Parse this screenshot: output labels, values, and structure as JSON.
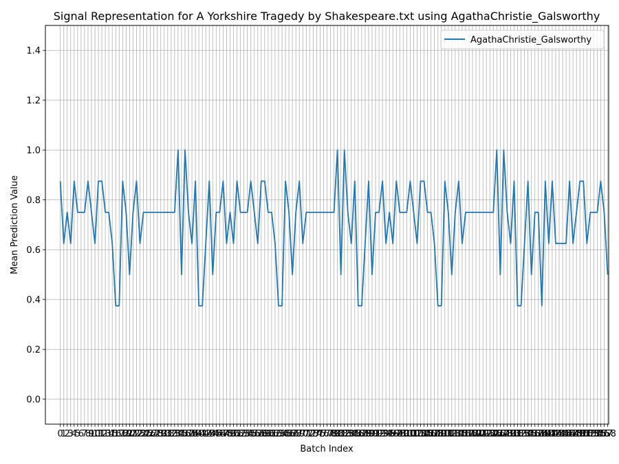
{
  "chart_data": {
    "type": "line",
    "title": "Signal Representation for A Yorkshire Tragedy by Shakespeare.txt using AgathaChristie_Galsworthy",
    "xlabel": "Batch Index",
    "ylabel": "Mean Prediction Value",
    "xlim": [
      -4.3,
      158.3
    ],
    "ylim": [
      -0.1,
      1.5
    ],
    "yticks": [
      0.0,
      0.2,
      0.4,
      0.6,
      0.8,
      1.0,
      1.2,
      1.4
    ],
    "ytick_labels": [
      "0.0",
      "0.2",
      "0.4",
      "0.6",
      "0.8",
      "1.0",
      "1.2",
      "1.4"
    ],
    "grid": true,
    "legend_position": "top-right",
    "colors": {
      "series": "#1f77b4",
      "grid": "#b0b0b0"
    },
    "series": [
      {
        "name": "AgathaChristie_Galsworthy",
        "values": [
          0.875,
          0.625,
          0.75,
          0.625,
          0.875,
          0.75,
          0.75,
          0.75,
          0.875,
          0.75,
          0.625,
          0.875,
          0.875,
          0.75,
          0.75,
          0.625,
          0.375,
          0.375,
          0.875,
          0.75,
          0.5,
          0.75,
          0.875,
          0.625,
          0.75,
          0.75,
          0.75,
          0.75,
          0.75,
          0.75,
          0.75,
          0.75,
          0.75,
          0.75,
          1.0,
          0.5,
          1.0,
          0.75,
          0.625,
          0.875,
          0.375,
          0.375,
          0.625,
          0.875,
          0.5,
          0.75,
          0.75,
          0.875,
          0.625,
          0.75,
          0.625,
          0.875,
          0.75,
          0.75,
          0.75,
          0.875,
          0.75,
          0.625,
          0.875,
          0.875,
          0.75,
          0.75,
          0.625,
          0.375,
          0.375,
          0.875,
          0.75,
          0.5,
          0.75,
          0.875,
          0.625,
          0.75,
          0.75,
          0.75,
          0.75,
          0.75,
          0.75,
          0.75,
          0.75,
          0.75,
          1.0,
          0.5,
          1.0,
          0.75,
          0.625,
          0.875,
          0.375,
          0.375,
          0.625,
          0.875,
          0.5,
          0.75,
          0.75,
          0.875,
          0.625,
          0.75,
          0.625,
          0.875,
          0.75,
          0.75,
          0.75,
          0.875,
          0.75,
          0.625,
          0.875,
          0.875,
          0.75,
          0.75,
          0.625,
          0.375,
          0.375,
          0.875,
          0.75,
          0.5,
          0.75,
          0.875,
          0.625,
          0.75,
          0.75,
          0.75,
          0.75,
          0.75,
          0.75,
          0.75,
          0.75,
          0.75,
          1.0,
          0.5,
          1.0,
          0.75,
          0.625,
          0.875,
          0.375,
          0.375,
          0.625,
          0.875,
          0.5,
          0.75,
          0.75,
          0.375,
          0.875,
          0.625,
          0.875,
          0.625,
          0.625,
          0.625,
          0.625,
          0.875,
          0.625,
          0.75,
          0.875,
          0.875,
          0.625,
          0.75,
          0.75,
          0.75,
          0.875,
          0.75,
          0.5
        ]
      }
    ]
  }
}
